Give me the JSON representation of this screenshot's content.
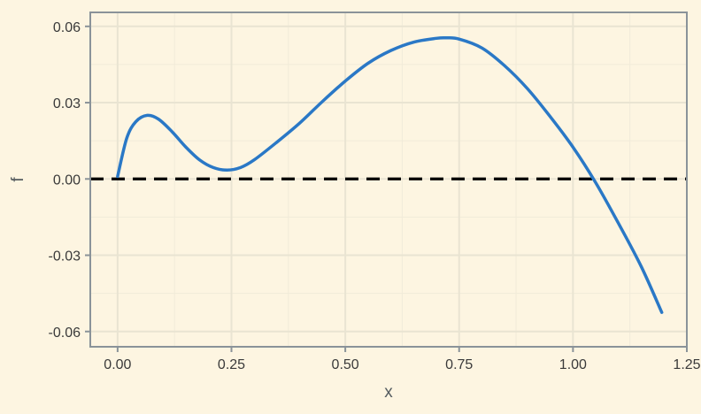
{
  "chart_data": {
    "type": "line",
    "title": "",
    "xlabel": "x",
    "ylabel": "f",
    "xlim": [
      -0.06,
      1.25
    ],
    "ylim": [
      -0.066,
      0.0655
    ],
    "x_ticks": [
      0.0,
      0.25,
      0.5,
      0.75,
      1.0,
      1.25
    ],
    "x_tick_labels": [
      "0.00",
      "0.25",
      "0.50",
      "0.75",
      "1.00",
      "1.25"
    ],
    "y_ticks": [
      -0.06,
      -0.03,
      0.0,
      0.03,
      0.06
    ],
    "y_tick_labels": [
      "-0.06",
      "-0.03",
      "0.00",
      "0.03",
      "0.06"
    ],
    "grid": true,
    "legend": "none",
    "series": [
      {
        "color": "#2a78c6",
        "x": [
          0.0,
          0.02,
          0.04,
          0.065,
          0.09,
          0.12,
          0.15,
          0.18,
          0.21,
          0.24,
          0.27,
          0.3,
          0.35,
          0.4,
          0.45,
          0.5,
          0.55,
          0.6,
          0.65,
          0.7,
          0.72,
          0.75,
          0.8,
          0.85,
          0.9,
          0.95,
          1.0,
          1.05,
          1.1,
          1.15,
          1.195
        ],
        "y": [
          0.001,
          0.016,
          0.0225,
          0.025,
          0.0235,
          0.0185,
          0.0125,
          0.0075,
          0.0045,
          0.0035,
          0.0045,
          0.0075,
          0.0145,
          0.022,
          0.0305,
          0.0385,
          0.0455,
          0.0505,
          0.0538,
          0.0553,
          0.0555,
          0.055,
          0.0515,
          0.0445,
          0.0355,
          0.0245,
          0.0125,
          -0.0015,
          -0.0175,
          -0.0345,
          -0.0525
        ]
      }
    ],
    "reference_lines": [
      {
        "axis": "y",
        "value": 0.0,
        "style": "dashed",
        "color": "#000000"
      }
    ],
    "colors": {
      "background": "#fdf5e1",
      "major_grid": "#e9e4d2",
      "minor_grid": "#f1ebd9",
      "frame": "#8a9399"
    }
  }
}
